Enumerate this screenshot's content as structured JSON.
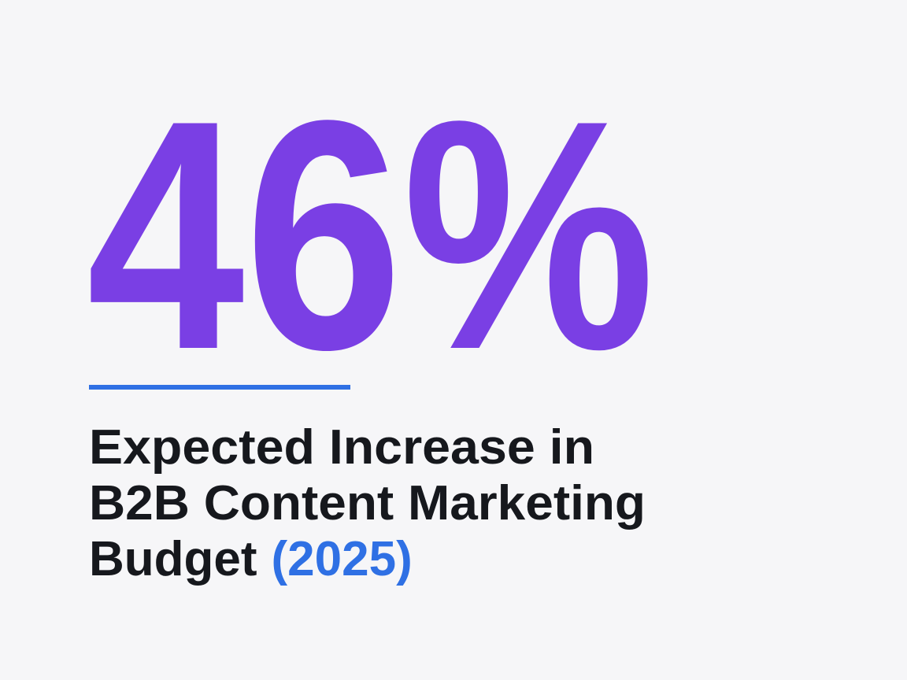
{
  "stat": {
    "value": "46%",
    "heading_lines": [
      "Expected Increase in",
      "B2B Content Marketing",
      "Budget"
    ],
    "year": "(2025)"
  }
}
